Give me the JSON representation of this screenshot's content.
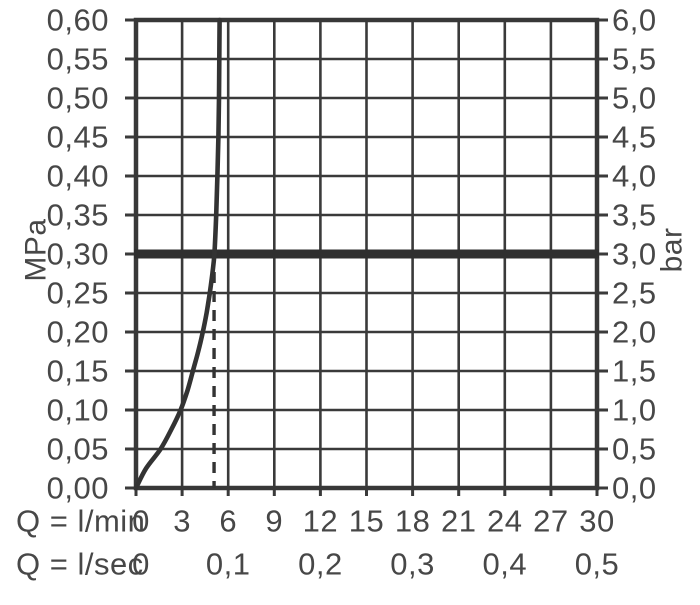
{
  "colors": {
    "grid": "#3a3a3a",
    "border": "#383838",
    "curve": "#333333",
    "reference_line": "#2f2f2f",
    "dashed_line": "#333333",
    "text": "#474747",
    "background": "#ffffff"
  },
  "chart_data": {
    "type": "line",
    "grid": "on",
    "y_axis_left": {
      "label": "MPa",
      "tick_labels": [
        "0,60",
        "0,55",
        "0,50",
        "0,45",
        "0,40",
        "0,35",
        "0,30",
        "0,25",
        "0,20",
        "0,15",
        "0,10",
        "0,05",
        "0,00"
      ],
      "min": 0,
      "max": 0.6,
      "step": 0.05
    },
    "y_axis_right": {
      "label": "bar",
      "tick_labels": [
        "6,0",
        "5,5",
        "5,0",
        "4,5",
        "4,0",
        "3,5",
        "3,0",
        "2,5",
        "2,0",
        "1,5",
        "1,0",
        "0,5",
        "0,0"
      ],
      "min": 0,
      "max": 6,
      "step": 0.5
    },
    "x_axis_lmin": {
      "label": "Q = l/min",
      "tick_labels": [
        "0",
        "3",
        "6",
        "9",
        "12",
        "15",
        "18",
        "21",
        "24",
        "27",
        "30"
      ],
      "min": 0,
      "max": 30,
      "step": 3
    },
    "x_axis_lsec": {
      "label": "Q = l/sec",
      "tick_labels": [
        "0",
        "0,1",
        "0,2",
        "0,3",
        "0,4",
        "0,5"
      ],
      "positions_lmin": [
        0,
        6,
        12,
        18,
        24,
        30
      ]
    },
    "reference_line": {
      "value_mpa": 0.3,
      "value_bar": 3.0,
      "orientation": "horizontal"
    },
    "dashed_line": {
      "q_lmin": 5.08,
      "from_mpa": 0,
      "to_mpa": 0.277,
      "orientation": "vertical"
    },
    "series": [
      {
        "name": "flow-curve",
        "points_q_lmin_vs_mpa": [
          [
            0,
            0
          ],
          [
            0.65,
            0.025
          ],
          [
            1.6,
            0.05
          ],
          [
            2.3,
            0.075
          ],
          [
            2.9,
            0.1
          ],
          [
            3.35,
            0.125
          ],
          [
            3.7,
            0.15
          ],
          [
            4.05,
            0.175
          ],
          [
            4.35,
            0.2
          ],
          [
            4.6,
            0.225
          ],
          [
            4.8,
            0.25
          ],
          [
            4.97,
            0.275
          ],
          [
            5.1,
            0.3
          ],
          [
            5.22,
            0.35
          ],
          [
            5.3,
            0.4
          ],
          [
            5.36,
            0.45
          ],
          [
            5.4,
            0.5
          ],
          [
            5.42,
            0.55
          ],
          [
            5.44,
            0.6
          ]
        ]
      }
    ]
  }
}
